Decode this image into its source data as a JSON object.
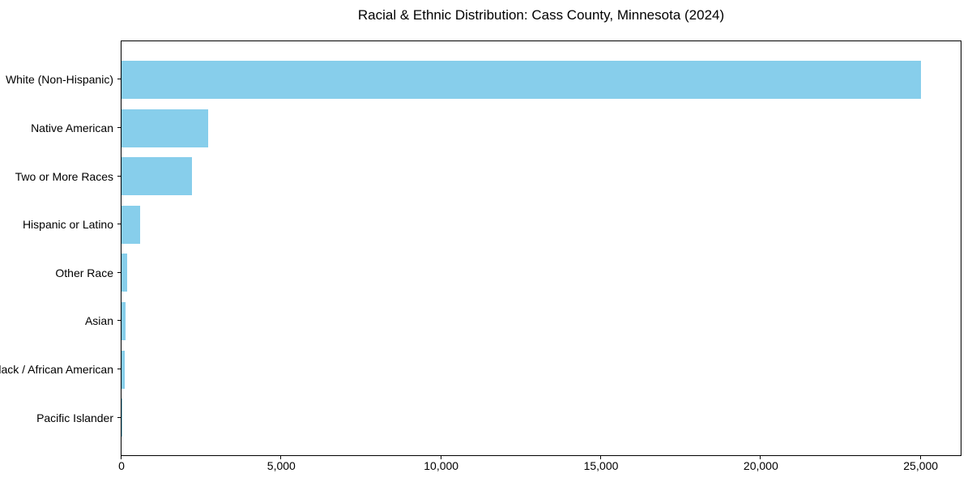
{
  "chart_data": {
    "type": "bar",
    "orientation": "horizontal",
    "title": "Racial & Ethnic Distribution: Cass County, Minnesota (2024)",
    "categories": [
      "White (Non-Hispanic)",
      "Native American",
      "Two or More Races",
      "Hispanic or Latino",
      "Other Race",
      "Asian",
      "Black / African American",
      "Pacific Islander"
    ],
    "values": [
      25000,
      2700,
      2200,
      580,
      175,
      130,
      100,
      10
    ],
    "xlabel": "",
    "ylabel": "",
    "xlim": [
      0,
      26250
    ],
    "x_tick_values": [
      0,
      5000,
      10000,
      15000,
      20000,
      25000
    ],
    "x_tick_labels": [
      "0",
      "5,000",
      "10,000",
      "15,000",
      "20,000",
      "25,000"
    ],
    "bar_color": "#87CEEB",
    "background_color": "#FFFFFF",
    "axis_color": "#000000",
    "grid": false,
    "legend": null
  }
}
